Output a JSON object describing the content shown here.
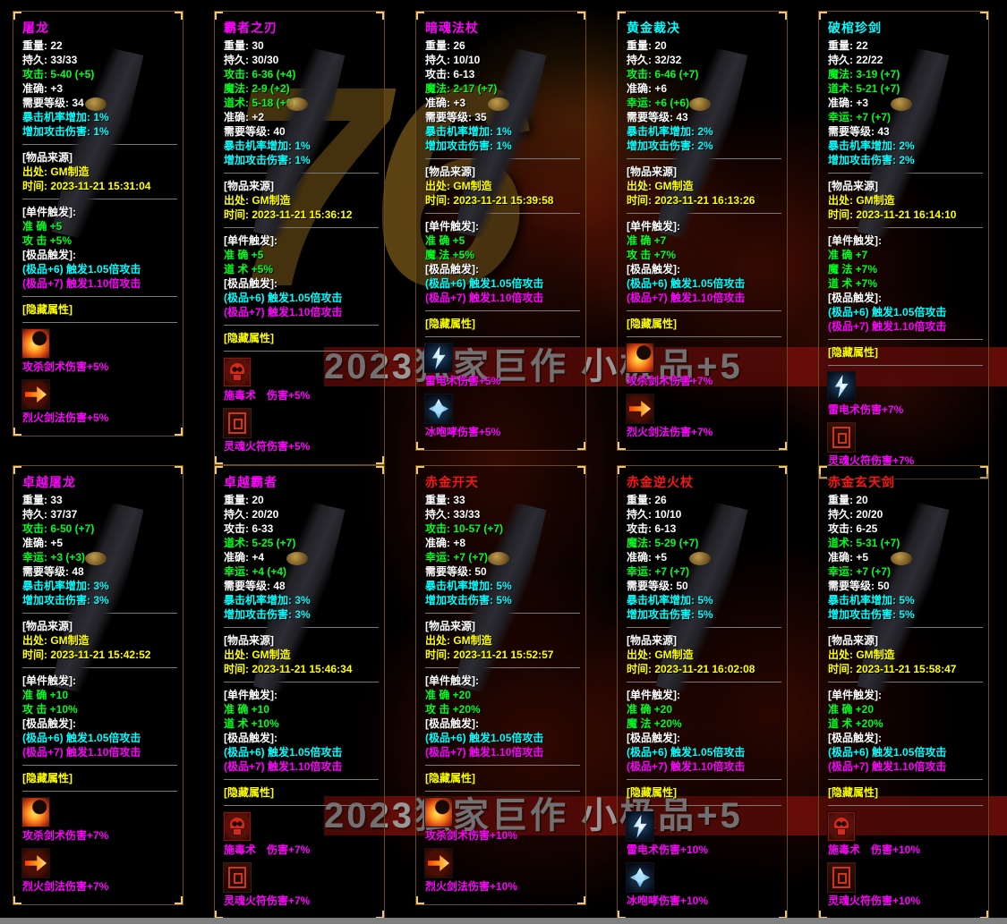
{
  "background": {
    "logo": "76",
    "watermark": "2023独家巨作 小极品+5"
  },
  "labels": {
    "source_header": "[物品来源]",
    "source_label": "出处:",
    "time_label": "时间:",
    "single_trigger_header": "[单件触发]:",
    "premium_trigger_header": "[极品触发]:",
    "hidden_header": "[隐藏属性]"
  },
  "colors": {
    "green": "#00ff21",
    "cyan": "#00ffff",
    "yellow": "#ffff00",
    "magenta": "#ff00ff",
    "white": "#ffffff",
    "panel_border": "#6b4a20",
    "corner_accent": "#f0c96a"
  },
  "panels": [
    {
      "name": "屠龙",
      "name_color": "#ff00ff",
      "stats": [
        {
          "label": "重量:",
          "value": "22",
          "color": "white"
        },
        {
          "label": "持久:",
          "value": "33/33",
          "color": "white"
        },
        {
          "label": "攻击:",
          "value": "5-40 (+5)",
          "color": "green"
        },
        {
          "label": "准确:",
          "value": "+3",
          "color": "white"
        },
        {
          "label": "需要等级:",
          "value": "34",
          "color": "white"
        },
        {
          "label": "暴击机率增加:",
          "value": "1%",
          "color": "cyan"
        },
        {
          "label": "增加攻击伤害:",
          "value": "1%",
          "color": "cyan"
        }
      ],
      "source": {
        "from": "GM制造",
        "time": "2023-11-21 15:31:04"
      },
      "single_triggers": [
        "准 确 +5",
        "攻 击 +5%"
      ],
      "premium_triggers": [
        {
          "text": "(极品+6) 触发1.05倍攻击",
          "color": "cyan"
        },
        {
          "text": "(极品+7) 触发1.10倍攻击",
          "color": "magenta"
        }
      ],
      "hidden": [
        {
          "icon": "fire-crescent-icon",
          "text": "攻杀剑术伤害+5%"
        },
        {
          "icon": "fire-arrow-icon",
          "text": "烈火剑法伤害+5%"
        }
      ]
    },
    {
      "name": "霸者之刃",
      "name_color": "#ff00ff",
      "stats": [
        {
          "label": "重量:",
          "value": "30",
          "color": "white"
        },
        {
          "label": "持久:",
          "value": "30/30",
          "color": "white"
        },
        {
          "label": "攻击:",
          "value": "6-36 (+4)",
          "color": "green"
        },
        {
          "label": "魔法:",
          "value": "2-9 (+2)",
          "color": "green"
        },
        {
          "label": "道术:",
          "value": "5-18 (+6)",
          "color": "green"
        },
        {
          "label": "准确:",
          "value": "+2",
          "color": "white"
        },
        {
          "label": "需要等级:",
          "value": "40",
          "color": "white"
        },
        {
          "label": "暴击机率增加:",
          "value": "1%",
          "color": "cyan"
        },
        {
          "label": "增加攻击伤害:",
          "value": "1%",
          "color": "cyan"
        }
      ],
      "source": {
        "from": "GM制造",
        "time": "2023-11-21 15:36:12"
      },
      "single_triggers": [
        "准 确 +5",
        "道 术 +5%"
      ],
      "premium_triggers": [
        {
          "text": "(极品+6) 触发1.05倍攻击",
          "color": "cyan"
        },
        {
          "text": "(极品+7) 触发1.10倍攻击",
          "color": "magenta"
        }
      ],
      "hidden": [
        {
          "icon": "poison-skull-icon",
          "text": "施毒术　伤害+5%"
        },
        {
          "icon": "fire-talisman-icon",
          "text": "灵魂火符伤害+5%"
        }
      ]
    },
    {
      "name": "暗魂法杖",
      "name_color": "#ff00ff",
      "stats": [
        {
          "label": "重量:",
          "value": "26",
          "color": "white"
        },
        {
          "label": "持久:",
          "value": "10/10",
          "color": "white"
        },
        {
          "label": "攻击:",
          "value": "6-13",
          "color": "white"
        },
        {
          "label": "魔法:",
          "value": "2-17 (+7)",
          "color": "green"
        },
        {
          "label": "准确:",
          "value": "+3",
          "color": "white"
        },
        {
          "label": "需要等级:",
          "value": "35",
          "color": "white"
        },
        {
          "label": "暴击机率增加:",
          "value": "1%",
          "color": "cyan"
        },
        {
          "label": "增加攻击伤害:",
          "value": "1%",
          "color": "cyan"
        }
      ],
      "source": {
        "from": "GM制造",
        "time": "2023-11-21 15:39:58"
      },
      "single_triggers": [
        "准 确 +5",
        "魔 法 +5%"
      ],
      "premium_triggers": [
        {
          "text": "(极品+6) 触发1.05倍攻击",
          "color": "cyan"
        },
        {
          "text": "(极品+7) 触发1.10倍攻击",
          "color": "magenta"
        }
      ],
      "hidden": [
        {
          "icon": "lightning-icon",
          "text": "雷电术伤害+5%"
        },
        {
          "icon": "ice-frost-icon",
          "text": "冰咆哮伤害+5%"
        }
      ]
    },
    {
      "name": "黄金裁决",
      "name_color": "#00ffff",
      "stats": [
        {
          "label": "重量:",
          "value": "20",
          "color": "white"
        },
        {
          "label": "持久:",
          "value": "32/32",
          "color": "white"
        },
        {
          "label": "攻击:",
          "value": "6-46 (+7)",
          "color": "green"
        },
        {
          "label": "准确:",
          "value": "+6",
          "color": "white"
        },
        {
          "label": "幸运:",
          "value": "+6 (+6)",
          "color": "green"
        },
        {
          "label": "需要等级:",
          "value": "43",
          "color": "white"
        },
        {
          "label": "暴击机率增加:",
          "value": "2%",
          "color": "cyan"
        },
        {
          "label": "增加攻击伤害:",
          "value": "2%",
          "color": "cyan"
        }
      ],
      "source": {
        "from": "GM制造",
        "time": "2023-11-21 16:13:26"
      },
      "single_triggers": [
        "准 确 +7",
        "攻 击 +7%"
      ],
      "premium_triggers": [
        {
          "text": "(极品+6) 触发1.05倍攻击",
          "color": "cyan"
        },
        {
          "text": "(极品+7) 触发1.10倍攻击",
          "color": "magenta"
        }
      ],
      "hidden": [
        {
          "icon": "fire-crescent-icon",
          "text": "攻杀剑术伤害+7%"
        },
        {
          "icon": "fire-arrow-icon",
          "text": "烈火剑法伤害+7%"
        }
      ]
    },
    {
      "name": "破棺珍剑",
      "name_color": "#00ffff",
      "stats": [
        {
          "label": "重量:",
          "value": "22",
          "color": "white"
        },
        {
          "label": "持久:",
          "value": "22/22",
          "color": "white"
        },
        {
          "label": "魔法:",
          "value": "3-19 (+7)",
          "color": "green"
        },
        {
          "label": "道术:",
          "value": "5-21 (+7)",
          "color": "green"
        },
        {
          "label": "准确:",
          "value": "+3",
          "color": "white"
        },
        {
          "label": "幸运:",
          "value": "+7 (+7)",
          "color": "green"
        },
        {
          "label": "需要等级:",
          "value": "43",
          "color": "white"
        },
        {
          "label": "暴击机率增加:",
          "value": "2%",
          "color": "cyan"
        },
        {
          "label": "增加攻击伤害:",
          "value": "2%",
          "color": "cyan"
        }
      ],
      "source": {
        "from": "GM制造",
        "time": "2023-11-21 16:14:10"
      },
      "single_triggers": [
        "准 确 +7",
        "魔 法 +7%",
        "道 术 +7%"
      ],
      "premium_triggers": [
        {
          "text": "(极品+6) 触发1.05倍攻击",
          "color": "cyan"
        },
        {
          "text": "(极品+7) 触发1.10倍攻击",
          "color": "magenta"
        }
      ],
      "hidden": [
        {
          "icon": "lightning-icon",
          "text": "雷电术伤害+7%"
        },
        {
          "icon": "fire-talisman-icon",
          "text": "灵魂火符伤害+7%"
        }
      ]
    },
    {
      "name": "卓越屠龙",
      "name_color": "#ff00ff",
      "stats": [
        {
          "label": "重量:",
          "value": "33",
          "color": "white"
        },
        {
          "label": "持久:",
          "value": "37/37",
          "color": "white"
        },
        {
          "label": "攻击:",
          "value": "6-50 (+7)",
          "color": "green"
        },
        {
          "label": "准确:",
          "value": "+5",
          "color": "white"
        },
        {
          "label": "幸运:",
          "value": "+3 (+3)",
          "color": "green"
        },
        {
          "label": "需要等级:",
          "value": "48",
          "color": "white"
        },
        {
          "label": "暴击机率增加:",
          "value": "3%",
          "color": "cyan"
        },
        {
          "label": "增加攻击伤害:",
          "value": "3%",
          "color": "cyan"
        }
      ],
      "source": {
        "from": "GM制造",
        "time": "2023-11-21 15:42:52"
      },
      "single_triggers": [
        "准 确 +10",
        "攻 击 +10%"
      ],
      "premium_triggers": [
        {
          "text": "(极品+6) 触发1.05倍攻击",
          "color": "cyan"
        },
        {
          "text": "(极品+7) 触发1.10倍攻击",
          "color": "magenta"
        }
      ],
      "hidden": [
        {
          "icon": "fire-crescent-icon",
          "text": "攻杀剑术伤害+7%"
        },
        {
          "icon": "fire-arrow-icon",
          "text": "烈火剑法伤害+7%"
        }
      ]
    },
    {
      "name": "卓越霸者",
      "name_color": "#ff00ff",
      "stats": [
        {
          "label": "重量:",
          "value": "20",
          "color": "white"
        },
        {
          "label": "持久:",
          "value": "20/20",
          "color": "white"
        },
        {
          "label": "攻击:",
          "value": "6-33",
          "color": "white"
        },
        {
          "label": "道术:",
          "value": "5-25 (+7)",
          "color": "green"
        },
        {
          "label": "准确:",
          "value": "+4",
          "color": "white"
        },
        {
          "label": "幸运:",
          "value": "+4 (+4)",
          "color": "green"
        },
        {
          "label": "需要等级:",
          "value": "48",
          "color": "white"
        },
        {
          "label": "暴击机率增加:",
          "value": "3%",
          "color": "cyan"
        },
        {
          "label": "增加攻击伤害:",
          "value": "3%",
          "color": "cyan"
        }
      ],
      "source": {
        "from": "GM制造",
        "time": "2023-11-21 15:46:34"
      },
      "single_triggers": [
        "准 确 +10",
        "道 术 +10%"
      ],
      "premium_triggers": [
        {
          "text": "(极品+6) 触发1.05倍攻击",
          "color": "cyan"
        },
        {
          "text": "(极品+7) 触发1.10倍攻击",
          "color": "magenta"
        }
      ],
      "hidden": [
        {
          "icon": "poison-skull-icon",
          "text": "施毒术　伤害+7%"
        },
        {
          "icon": "fire-talisman-icon",
          "text": "灵魂火符伤害+7%"
        }
      ]
    },
    {
      "name": "赤金开天",
      "name_color": "#ff1414",
      "stats": [
        {
          "label": "重量:",
          "value": "33",
          "color": "white"
        },
        {
          "label": "持久:",
          "value": "33/33",
          "color": "white"
        },
        {
          "label": "攻击:",
          "value": "10-57 (+7)",
          "color": "green"
        },
        {
          "label": "准确:",
          "value": "+8",
          "color": "white"
        },
        {
          "label": "幸运:",
          "value": "+7 (+7)",
          "color": "green"
        },
        {
          "label": "需要等级:",
          "value": "50",
          "color": "white"
        },
        {
          "label": "暴击机率增加:",
          "value": "5%",
          "color": "cyan"
        },
        {
          "label": "增加攻击伤害:",
          "value": "5%",
          "color": "cyan"
        }
      ],
      "source": {
        "from": "GM制造",
        "time": "2023-11-21 15:52:57"
      },
      "single_triggers": [
        "准 确 +20",
        "攻 击 +20%"
      ],
      "premium_triggers": [
        {
          "text": "(极品+6) 触发1.05倍攻击",
          "color": "cyan"
        },
        {
          "text": "(极品+7) 触发1.10倍攻击",
          "color": "magenta"
        }
      ],
      "hidden": [
        {
          "icon": "fire-crescent-icon",
          "text": "攻杀剑术伤害+10%"
        },
        {
          "icon": "fire-arrow-icon",
          "text": "烈火剑法伤害+10%"
        }
      ]
    },
    {
      "name": "赤金逆火杖",
      "name_color": "#ff1414",
      "stats": [
        {
          "label": "重量:",
          "value": "26",
          "color": "white"
        },
        {
          "label": "持久:",
          "value": "10/10",
          "color": "white"
        },
        {
          "label": "攻击:",
          "value": "6-13",
          "color": "white"
        },
        {
          "label": "魔法:",
          "value": "5-29 (+7)",
          "color": "green"
        },
        {
          "label": "准确:",
          "value": "+5",
          "color": "white"
        },
        {
          "label": "幸运:",
          "value": "+7 (+7)",
          "color": "green"
        },
        {
          "label": "需要等级:",
          "value": "50",
          "color": "white"
        },
        {
          "label": "暴击机率增加:",
          "value": "5%",
          "color": "cyan"
        },
        {
          "label": "增加攻击伤害:",
          "value": "5%",
          "color": "cyan"
        }
      ],
      "source": {
        "from": "GM制造",
        "time": "2023-11-21 16:02:08"
      },
      "single_triggers": [
        "准 确 +20",
        "魔 法 +20%"
      ],
      "premium_triggers": [
        {
          "text": "(极品+6) 触发1.05倍攻击",
          "color": "cyan"
        },
        {
          "text": "(极品+7) 触发1.10倍攻击",
          "color": "magenta"
        }
      ],
      "hidden": [
        {
          "icon": "lightning-icon",
          "text": "雷电术伤害+10%"
        },
        {
          "icon": "ice-frost-icon",
          "text": "冰咆哮伤害+10%"
        }
      ]
    },
    {
      "name": "赤金玄天剑",
      "name_color": "#ff1414",
      "stats": [
        {
          "label": "重量:",
          "value": "20",
          "color": "white"
        },
        {
          "label": "持久:",
          "value": "20/20",
          "color": "white"
        },
        {
          "label": "攻击:",
          "value": "6-25",
          "color": "white"
        },
        {
          "label": "道术:",
          "value": "5-31 (+7)",
          "color": "green"
        },
        {
          "label": "准确:",
          "value": "+5",
          "color": "white"
        },
        {
          "label": "幸运:",
          "value": "+7 (+7)",
          "color": "green"
        },
        {
          "label": "需要等级:",
          "value": "50",
          "color": "white"
        },
        {
          "label": "暴击机率增加:",
          "value": "5%",
          "color": "cyan"
        },
        {
          "label": "增加攻击伤害:",
          "value": "5%",
          "color": "cyan"
        }
      ],
      "source": {
        "from": "GM制造",
        "time": "2023-11-21 15:58:47"
      },
      "single_triggers": [
        "准 确 +20",
        "道 术 +20%"
      ],
      "premium_triggers": [
        {
          "text": "(极品+6) 触发1.05倍攻击",
          "color": "cyan"
        },
        {
          "text": "(极品+7) 触发1.10倍攻击",
          "color": "magenta"
        }
      ],
      "hidden": [
        {
          "icon": "poison-skull-icon",
          "text": "施毒术　伤害+10%"
        },
        {
          "icon": "fire-talisman-icon",
          "text": "灵魂火符伤害+10%"
        }
      ]
    }
  ]
}
